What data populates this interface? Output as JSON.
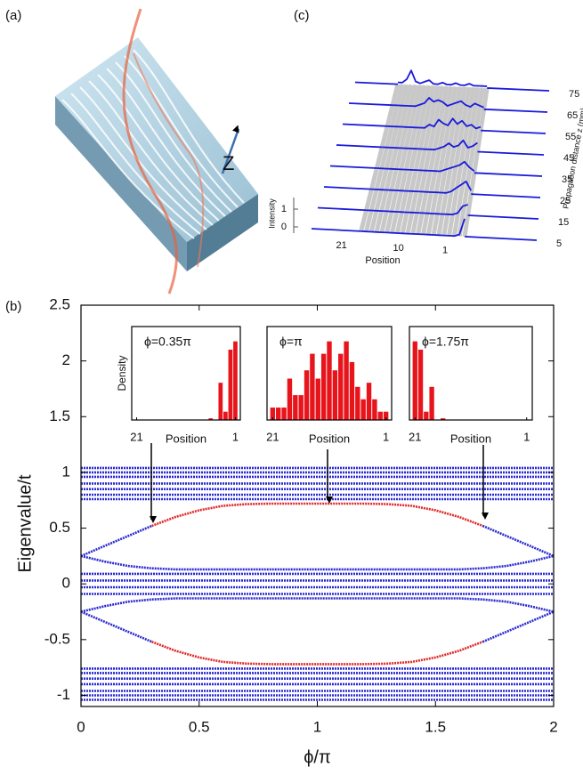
{
  "panel_labels": [
    "(a)",
    "(b)",
    "(c)"
  ],
  "panel_a": {
    "axis_label": "Z"
  },
  "chart_data": [
    {
      "type": "line",
      "xlabel": "ϕ/π",
      "ylabel": "Eigenvalue/t",
      "xlim": [
        0,
        2
      ],
      "xticks": [
        0,
        0.5,
        1,
        1.5,
        2
      ],
      "ylim": [
        -1.1,
        2.5
      ],
      "yticks": [
        -1,
        -0.5,
        0,
        0.5,
        1,
        1.5,
        2,
        2.5
      ],
      "series": [
        {
          "color": "#2a2ad0",
          "x": [
            0,
            2
          ],
          "values": [
            1.04,
            1.04
          ]
        },
        {
          "color": "#2a2ad0",
          "x": [
            0,
            2
          ],
          "values": [
            1.0,
            1.0
          ]
        },
        {
          "color": "#2a2ad0",
          "x": [
            0,
            2
          ],
          "values": [
            0.96,
            0.96
          ]
        },
        {
          "color": "#2a2ad0",
          "x": [
            0,
            2
          ],
          "values": [
            0.9,
            0.9
          ]
        },
        {
          "color": "#2a2ad0",
          "x": [
            0,
            2
          ],
          "values": [
            0.85,
            0.85
          ]
        },
        {
          "color": "#2a2ad0",
          "x": [
            0,
            2
          ],
          "values": [
            0.8,
            0.8
          ]
        },
        {
          "color": "#2a2ad0",
          "x": [
            0,
            2
          ],
          "values": [
            0.76,
            0.76
          ]
        },
        {
          "color": "#2a2ad0",
          "x": [
            0,
            2
          ],
          "values": [
            0.09,
            0.09
          ]
        },
        {
          "color": "#2a2ad0",
          "x": [
            0,
            2
          ],
          "values": [
            0.03,
            0.03
          ]
        },
        {
          "color": "#2a2ad0",
          "x": [
            0,
            2
          ],
          "values": [
            -0.03,
            -0.03
          ]
        },
        {
          "color": "#2a2ad0",
          "x": [
            0,
            2
          ],
          "values": [
            -0.09,
            -0.09
          ]
        },
        {
          "color": "#2a2ad0",
          "x": [
            0,
            2
          ],
          "values": [
            -0.76,
            -0.76
          ]
        },
        {
          "color": "#2a2ad0",
          "x": [
            0,
            2
          ],
          "values": [
            -0.8,
            -0.8
          ]
        },
        {
          "color": "#2a2ad0",
          "x": [
            0,
            2
          ],
          "values": [
            -0.85,
            -0.85
          ]
        },
        {
          "color": "#2a2ad0",
          "x": [
            0,
            2
          ],
          "values": [
            -0.9,
            -0.9
          ]
        },
        {
          "color": "#2a2ad0",
          "x": [
            0,
            2
          ],
          "values": [
            -0.96,
            -0.96
          ]
        },
        {
          "color": "#2a2ad0",
          "x": [
            0,
            2
          ],
          "values": [
            -1.0,
            -1.0
          ]
        },
        {
          "color": "#2a2ad0",
          "x": [
            0,
            2
          ],
          "values": [
            -1.04,
            -1.04
          ]
        },
        {
          "color": "#2a2ad0",
          "x": [
            0,
            0.1,
            0.2,
            0.3,
            0.4,
            0.5,
            1.5,
            1.6,
            1.7,
            1.8,
            1.9,
            2.0
          ],
          "values": [
            0.25,
            0.2,
            0.16,
            0.14,
            0.13,
            0.13,
            0.13,
            0.13,
            0.14,
            0.16,
            0.2,
            0.25
          ]
        },
        {
          "color": "#2a2ad0",
          "x": [
            0,
            0.1,
            0.2,
            0.3,
            0.4,
            0.5,
            1.5,
            1.6,
            1.7,
            1.8,
            1.9,
            2.0
          ],
          "values": [
            -0.25,
            -0.2,
            -0.16,
            -0.14,
            -0.13,
            -0.13,
            -0.13,
            -0.13,
            -0.14,
            -0.16,
            -0.2,
            -0.25
          ]
        },
        {
          "color": "#2a2ad0",
          "x": [
            0,
            0.1,
            0.2,
            0.3
          ],
          "values": [
            0.25,
            0.34,
            0.43,
            0.52
          ]
        },
        {
          "color": "#e02828",
          "x": [
            0.3,
            0.4,
            0.5,
            0.6,
            0.7,
            0.8,
            1.0,
            1.2,
            1.3,
            1.4,
            1.5,
            1.6,
            1.7
          ],
          "values": [
            0.52,
            0.6,
            0.66,
            0.7,
            0.715,
            0.72,
            0.72,
            0.72,
            0.715,
            0.7,
            0.66,
            0.6,
            0.52
          ]
        },
        {
          "color": "#2a2ad0",
          "x": [
            1.7,
            1.8,
            1.9,
            2.0
          ],
          "values": [
            0.52,
            0.43,
            0.34,
            0.25
          ]
        },
        {
          "color": "#2a2ad0",
          "x": [
            0,
            0.1,
            0.2,
            0.3
          ],
          "values": [
            -0.25,
            -0.34,
            -0.43,
            -0.52
          ]
        },
        {
          "color": "#e02828",
          "x": [
            0.3,
            0.4,
            0.5,
            0.6,
            0.7,
            0.8,
            1.0,
            1.2,
            1.3,
            1.4,
            1.5,
            1.6,
            1.7
          ],
          "values": [
            -0.52,
            -0.6,
            -0.66,
            -0.7,
            -0.715,
            -0.72,
            -0.72,
            -0.72,
            -0.715,
            -0.7,
            -0.66,
            -0.6,
            -0.52
          ]
        },
        {
          "color": "#2a2ad0",
          "x": [
            1.7,
            1.8,
            1.9,
            2.0
          ],
          "values": [
            -0.52,
            -0.43,
            -0.34,
            -0.25
          ]
        }
      ]
    },
    {
      "type": "bar",
      "title": "ϕ=0.35π",
      "xlabel": "Position",
      "ylabel": "Density",
      "color": "#e8141c",
      "xlim": [
        22,
        0
      ],
      "xticks": [
        21,
        1
      ],
      "ylim": [
        0,
        1
      ],
      "x": [
        1,
        2,
        3,
        4,
        5,
        6,
        7,
        8,
        9,
        10,
        11,
        12,
        13,
        14,
        15,
        16,
        17,
        18,
        19,
        20,
        21
      ],
      "values": [
        0.95,
        0.85,
        0.1,
        0.45,
        0,
        0.02,
        0,
        0,
        0,
        0,
        0,
        0,
        0,
        0,
        0,
        0,
        0,
        0,
        0,
        0,
        0
      ]
    },
    {
      "type": "bar",
      "title": "ϕ=π",
      "xlabel": "Position",
      "color": "#e8141c",
      "xlim": [
        22,
        0
      ],
      "xticks": [
        21,
        1
      ],
      "ylim": [
        0,
        1
      ],
      "x": [
        1,
        2,
        3,
        4,
        5,
        6,
        7,
        8,
        9,
        10,
        11,
        12,
        13,
        14,
        15,
        16,
        17,
        18,
        19,
        20,
        21
      ],
      "values": [
        0.1,
        0.1,
        0.25,
        0.45,
        0.25,
        0.4,
        0.7,
        0.95,
        0.8,
        0.6,
        0.95,
        0.8,
        0.5,
        0.8,
        0.6,
        0.3,
        0.3,
        0.5,
        0.15,
        0.15,
        0.15
      ]
    },
    {
      "type": "bar",
      "title": "ϕ=1.75π",
      "xlabel": "Position",
      "color": "#e8141c",
      "xlim": [
        22,
        0
      ],
      "xticks": [
        21,
        1
      ],
      "ylim": [
        0,
        1
      ],
      "x": [
        1,
        2,
        3,
        4,
        5,
        6,
        7,
        8,
        9,
        10,
        11,
        12,
        13,
        14,
        15,
        16,
        17,
        18,
        19,
        20,
        21
      ],
      "values": [
        0,
        0,
        0,
        0,
        0,
        0,
        0,
        0,
        0,
        0,
        0,
        0,
        0,
        0,
        0,
        0.02,
        0,
        0.4,
        0.1,
        0.85,
        0.95
      ]
    },
    {
      "type": "waterfall",
      "xlabel": "Position",
      "ylabel": "Intensity",
      "zlabel": "Propagation distance z (mm)",
      "xlim": [
        21,
        1
      ],
      "xticks": [
        21,
        10,
        1
      ],
      "yticks": [
        0,
        1
      ],
      "zlim": [
        5,
        75
      ],
      "zticks": [
        5,
        15,
        25,
        35,
        45,
        55,
        65,
        75
      ],
      "x": [
        1,
        2,
        3,
        4,
        5,
        6,
        7,
        8,
        9,
        10,
        11,
        12,
        13,
        14,
        15,
        16,
        17,
        18,
        19,
        20,
        21
      ],
      "color": "#1a1adc",
      "series": [
        {
          "z": 5,
          "values": [
            1.0,
            0.1,
            0,
            0,
            0,
            0,
            0,
            0,
            0,
            0,
            0,
            0,
            0,
            0,
            0,
            0,
            0,
            0,
            0,
            0,
            0
          ]
        },
        {
          "z": 15,
          "values": [
            0.6,
            0.5,
            0.1,
            0,
            0,
            0,
            0,
            0,
            0,
            0,
            0,
            0,
            0,
            0,
            0,
            0,
            0,
            0,
            0,
            0,
            0
          ]
        },
        {
          "z": 25,
          "values": [
            0.2,
            0.7,
            0.5,
            0.3,
            0.1,
            0,
            0,
            0,
            0,
            0,
            0,
            0,
            0,
            0,
            0,
            0,
            0,
            0,
            0,
            0,
            0
          ]
        },
        {
          "z": 35,
          "values": [
            0.1,
            0.3,
            0.6,
            0.4,
            0.3,
            0.2,
            0.1,
            0,
            0,
            0,
            0,
            0,
            0,
            0,
            0,
            0,
            0,
            0,
            0,
            0,
            0
          ]
        },
        {
          "z": 45,
          "values": [
            0.5,
            0.3,
            0.2,
            0.6,
            0.3,
            0.2,
            0.4,
            0.2,
            0.1,
            0,
            0,
            0,
            0,
            0,
            0,
            0,
            0,
            0,
            0,
            0,
            0
          ]
        },
        {
          "z": 55,
          "values": [
            0.2,
            0.1,
            0.3,
            0.2,
            0.5,
            0.3,
            0.6,
            0.2,
            0.3,
            0.5,
            0.1,
            0.2,
            0,
            0,
            0,
            0,
            0,
            0,
            0,
            0,
            0
          ]
        },
        {
          "z": 65,
          "values": [
            0.1,
            0.2,
            0.3,
            0.1,
            0.2,
            0.4,
            0.3,
            0.2,
            0.1,
            0.3,
            0.4,
            0.3,
            0.5,
            0.2,
            0.1,
            0,
            0,
            0,
            0,
            0,
            0
          ]
        },
        {
          "z": 75,
          "values": [
            0.1,
            0.1,
            0.1,
            0.1,
            0.2,
            0.1,
            0.1,
            0.2,
            0.1,
            0.1,
            0.2,
            0.1,
            0.1,
            0.3,
            0.2,
            0.1,
            0.2,
            0.8,
            0.3,
            0.1,
            0.1
          ]
        }
      ]
    }
  ]
}
